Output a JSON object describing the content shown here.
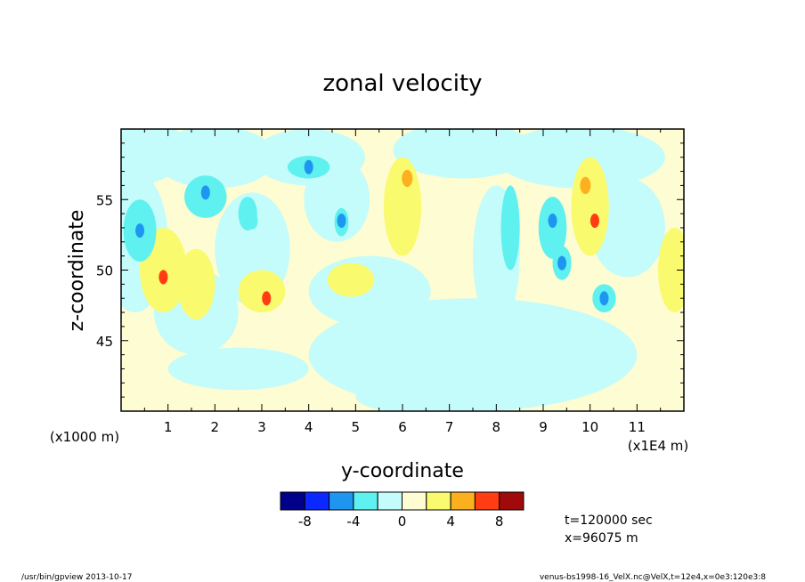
{
  "chart_data": {
    "type": "contour",
    "title": "zonal velocity",
    "xlabel": "y-coordinate",
    "ylabel": "z-coordinate",
    "x_scale_note": "(x1E4 m)",
    "y_scale_note": "(x1000 m)",
    "x_ticks": [
      "1",
      "2",
      "3",
      "4",
      "5",
      "6",
      "7",
      "8",
      "9",
      "10",
      "11"
    ],
    "x_tick_values": [
      1,
      2,
      3,
      4,
      5,
      6,
      7,
      8,
      9,
      10,
      11
    ],
    "xlim": [
      0,
      12
    ],
    "y_ticks": [
      "45",
      "50",
      "55"
    ],
    "y_tick_values": [
      45,
      50,
      55
    ],
    "ylim": [
      40,
      60
    ],
    "colorbar": {
      "levels": [
        -10,
        -8,
        -6,
        -4,
        -2,
        0,
        2,
        4,
        6,
        8,
        10
      ],
      "labels": [
        "-8",
        "-4",
        "0",
        "4",
        "8"
      ],
      "label_values": [
        -8,
        -4,
        0,
        4,
        8
      ],
      "colors": [
        "#00008b",
        "#0a28ff",
        "#1e96f0",
        "#5ff0f0",
        "#c4fbfb",
        "#fefcd2",
        "#fafa6e",
        "#fcb020",
        "#ff3c12",
        "#a00a0a"
      ]
    },
    "features": [
      {
        "y": 0.4,
        "z": 52.8,
        "value": -6
      },
      {
        "y": 1.8,
        "z": 55.5,
        "value": -6
      },
      {
        "y": 2.8,
        "z": 53.5,
        "value": -4
      },
      {
        "y": 4.0,
        "z": 57.3,
        "value": -6
      },
      {
        "y": 4.7,
        "z": 53.5,
        "value": -6
      },
      {
        "y": 6.1,
        "z": 56.5,
        "value": 4
      },
      {
        "y": 9.2,
        "z": 53.5,
        "value": -6
      },
      {
        "y": 9.4,
        "z": 50.5,
        "value": -6
      },
      {
        "y": 9.9,
        "z": 56.0,
        "value": 4
      },
      {
        "y": 10.1,
        "z": 53.5,
        "value": 6
      },
      {
        "y": 10.3,
        "z": 48.0,
        "value": -6
      },
      {
        "y": 0.9,
        "z": 49.5,
        "value": 6
      },
      {
        "y": 3.1,
        "z": 48.0,
        "value": 6
      },
      {
        "y": 11.8,
        "z": 50.0,
        "value": 2
      }
    ]
  },
  "annotations": {
    "time": "t=120000 sec",
    "position": "x=96075 m"
  },
  "footer": {
    "left": "/usr/bin/gpview   2013-10-17",
    "right": "venus-bs1998-16_VelX.nc@VelX,t=12e4,x=0e3:120e3:8"
  }
}
